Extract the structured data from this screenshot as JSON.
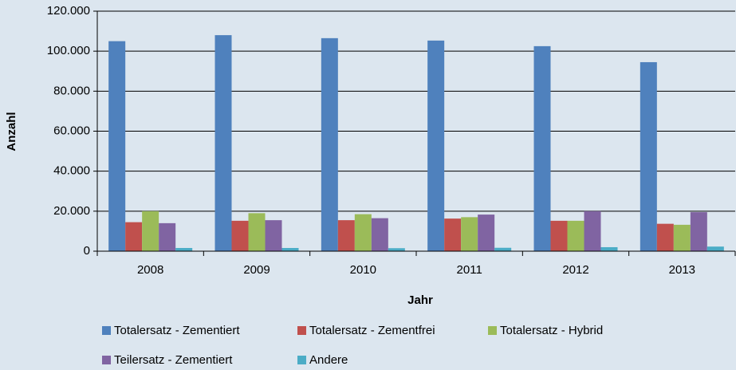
{
  "chart_data": {
    "type": "bar",
    "categories": [
      "2008",
      "2009",
      "2010",
      "2011",
      "2012",
      "2013"
    ],
    "series": [
      {
        "name": "Totalersatz - Zementiert",
        "color": "#4f81bd",
        "values": [
          105000,
          108000,
          106500,
          105300,
          102500,
          94500
        ]
      },
      {
        "name": "Totalersatz - Zementfrei",
        "color": "#c0504d",
        "values": [
          14500,
          15200,
          15500,
          16300,
          15200,
          13700
        ]
      },
      {
        "name": "Totalersatz - Hybrid",
        "color": "#9bbb59",
        "values": [
          20000,
          19000,
          18500,
          17000,
          15200,
          13200
        ]
      },
      {
        "name": "Teilersatz - Zementiert",
        "color": "#8064a2",
        "values": [
          14000,
          15500,
          16500,
          18300,
          20000,
          19500
        ]
      },
      {
        "name": "Andere",
        "color": "#4bacc6",
        "values": [
          1600,
          1600,
          1500,
          1700,
          2000,
          2300
        ]
      }
    ],
    "x_label": "Jahr",
    "y_label": "Anzahl",
    "ylim": [
      0,
      120000
    ],
    "yticks": [
      0,
      {
        "value": 20000,
        "label": "20.000"
      },
      {
        "value": 40000,
        "label": "40.000"
      },
      {
        "value": 60000,
        "label": "60.000"
      },
      {
        "value": 80000,
        "label": "80.000"
      },
      {
        "value": 100000,
        "label": "100.000"
      },
      {
        "value": 120000,
        "label": "120.000"
      }
    ],
    "grid": true,
    "legend": "bottom"
  }
}
